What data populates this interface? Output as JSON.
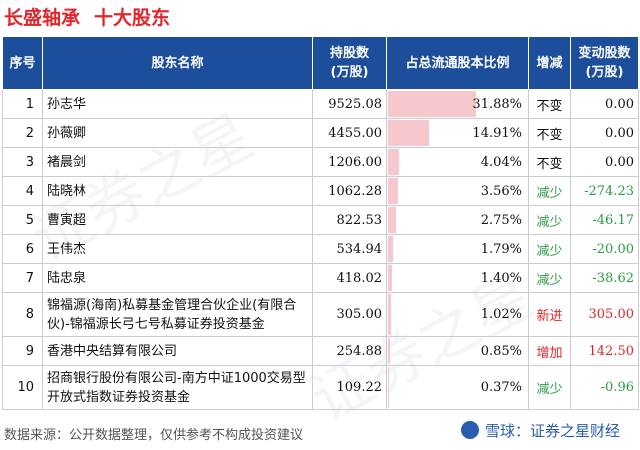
{
  "title": {
    "company": "长盛轴承",
    "subject": "十大股东"
  },
  "headers": {
    "idx": "序号",
    "name": "股东名称",
    "shares_l1": "持股数",
    "shares_l2": "(万股)",
    "pct": "占总流通股本比例",
    "chg": "增减",
    "delta_l1": "变动股数",
    "delta_l2": "(万股)"
  },
  "rows": [
    {
      "idx": "1",
      "name": "孙志华",
      "shares": "9525.08",
      "pct": "31.88%",
      "pct_value": 31.88,
      "chg": "不变",
      "chg_type": "none",
      "delta": "0.00"
    },
    {
      "idx": "2",
      "name": "孙薇卿",
      "shares": "4455.00",
      "pct": "14.91%",
      "pct_value": 14.91,
      "chg": "不变",
      "chg_type": "none",
      "delta": "0.00"
    },
    {
      "idx": "3",
      "name": "褚晨剑",
      "shares": "1206.00",
      "pct": "4.04%",
      "pct_value": 4.04,
      "chg": "不变",
      "chg_type": "none",
      "delta": "0.00"
    },
    {
      "idx": "4",
      "name": "陆晓林",
      "shares": "1062.28",
      "pct": "3.56%",
      "pct_value": 3.56,
      "chg": "减少",
      "chg_type": "down",
      "delta": "-274.23"
    },
    {
      "idx": "5",
      "name": "曹寅超",
      "shares": "822.53",
      "pct": "2.75%",
      "pct_value": 2.75,
      "chg": "减少",
      "chg_type": "down",
      "delta": "-46.17"
    },
    {
      "idx": "6",
      "name": "王伟杰",
      "shares": "534.94",
      "pct": "1.79%",
      "pct_value": 1.79,
      "chg": "减少",
      "chg_type": "down",
      "delta": "-20.00"
    },
    {
      "idx": "7",
      "name": "陆忠泉",
      "shares": "418.02",
      "pct": "1.40%",
      "pct_value": 1.4,
      "chg": "减少",
      "chg_type": "down",
      "delta": "-38.62"
    },
    {
      "idx": "8",
      "name": "锦福源(海南)私募基金管理合伙企业(有限合伙)-锦福源长弓七号私募证券投资基金",
      "shares": "305.00",
      "pct": "1.02%",
      "pct_value": 1.02,
      "chg": "新进",
      "chg_type": "up",
      "delta": "305.00",
      "tall": true
    },
    {
      "idx": "9",
      "name": "香港中央结算有限公司",
      "shares": "254.88",
      "pct": "0.85%",
      "pct_value": 0.85,
      "chg": "增加",
      "chg_type": "up",
      "delta": "142.50"
    },
    {
      "idx": "10",
      "name": "招商银行股份有限公司-南方中证1000交易型开放式指数证券投资基金",
      "shares": "109.22",
      "pct": "0.37%",
      "pct_value": 0.37,
      "chg": "减少",
      "chg_type": "down",
      "delta": "-0.96",
      "tall": true
    }
  ],
  "footer": "数据来源：公开数据整理，仅供参考不构成投资建议",
  "brand": "雪球：证券之星财经",
  "watermark": "证券之星",
  "colors": {
    "header_bg": "#1d4e9c",
    "title": "#e0262c",
    "bar": "#f6c7cd",
    "up": "#e0262c",
    "down": "#2e9a46"
  }
}
